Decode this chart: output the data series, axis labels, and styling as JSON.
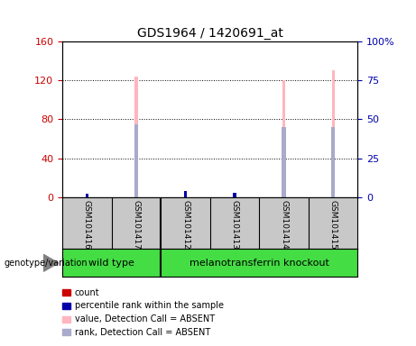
{
  "title": "GDS1964 / 1420691_at",
  "samples": [
    "GSM101416",
    "GSM101417",
    "GSM101412",
    "GSM101413",
    "GSM101414",
    "GSM101415"
  ],
  "left_ylim": [
    0,
    160
  ],
  "left_yticks": [
    0,
    40,
    80,
    120,
    160
  ],
  "right_ylim": [
    0,
    100
  ],
  "right_yticks": [
    0,
    25,
    50,
    75,
    100
  ],
  "right_yticklabels": [
    "0",
    "25",
    "50",
    "75",
    "100%"
  ],
  "pink_absent_color": "#FFB6BE",
  "lavender_absent_color": "#AAAACC",
  "red_color": "#CC0000",
  "blue_color": "#0000AA",
  "absent_value_bars": {
    "GSM101417": 124,
    "GSM101414": 120,
    "GSM101415": 130
  },
  "absent_rank_bars": {
    "GSM101417": 47,
    "GSM101414": 45,
    "GSM101415": 45
  },
  "present_value_bars": {
    "GSM101412": 5
  },
  "present_rank_bars": {
    "GSM101416": 2,
    "GSM101412": 4,
    "GSM101413": 3
  },
  "legend_labels": [
    "count",
    "percentile rank within the sample",
    "value, Detection Call = ABSENT",
    "rank, Detection Call = ABSENT"
  ],
  "legend_colors": [
    "#CC0000",
    "#0000AA",
    "#FFB6BE",
    "#AAAACC"
  ],
  "bg_color": "#FFFFFF",
  "plot_bg_color": "#FFFFFF",
  "tick_color_left": "#CC0000",
  "tick_color_right": "#0000AA",
  "group_label": "genotype/variation",
  "cell_bg": "#C8C8C8",
  "green_color": "#44DD44",
  "group1_name": "wild type",
  "group2_name": "melanotransferrin knockout",
  "group1_count": 2,
  "group2_count": 4
}
